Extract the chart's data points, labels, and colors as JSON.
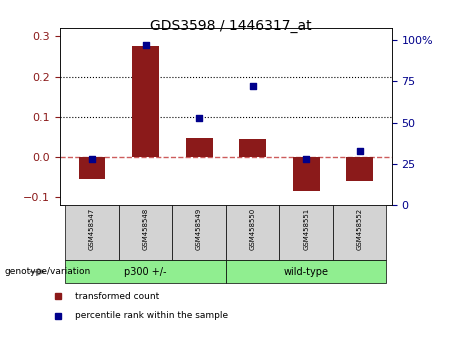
{
  "title": "GDS3598 / 1446317_at",
  "samples": [
    "GSM458547",
    "GSM458548",
    "GSM458549",
    "GSM458550",
    "GSM458551",
    "GSM458552"
  ],
  "bar_values": [
    -0.055,
    0.275,
    0.048,
    0.046,
    -0.085,
    -0.06
  ],
  "scatter_values": [
    28,
    97,
    53,
    72,
    28,
    33
  ],
  "groups": [
    {
      "label": "p300 +/-",
      "indices": [
        0,
        1,
        2
      ],
      "color": "#90EE90"
    },
    {
      "label": "wild-type",
      "indices": [
        3,
        4,
        5
      ],
      "color": "#90EE90"
    }
  ],
  "group_bg_colors": [
    "#90EE90",
    "#90EE90"
  ],
  "bar_color": "#8B1A1A",
  "scatter_color": "#00008B",
  "ylim_left": [
    -0.12,
    0.32
  ],
  "ylim_right": [
    0,
    107
  ],
  "yticks_left": [
    -0.1,
    0.0,
    0.1,
    0.2,
    0.3
  ],
  "yticks_right": [
    0,
    25,
    50,
    75,
    100
  ],
  "hlines": [
    0.1,
    0.2
  ],
  "zero_line_color": "#CD5C5C",
  "dotted_line_color": "black",
  "genotype_label": "genotype/variation",
  "legend_items": [
    "transformed count",
    "percentile rank within the sample"
  ],
  "bar_width": 0.5
}
